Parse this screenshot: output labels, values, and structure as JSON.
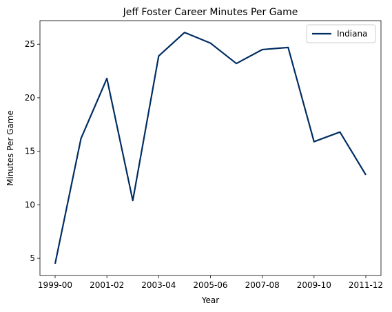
{
  "chart_data": {
    "type": "line",
    "title": "Jeff Foster  Career Minutes Per Game",
    "xlabel": "Year",
    "ylabel": "Minutes Per Game",
    "categories": [
      "1999-00",
      "2000-01",
      "2001-02",
      "2002-03",
      "2003-04",
      "2004-05",
      "2005-06",
      "2006-07",
      "2007-08",
      "2008-09",
      "2009-10",
      "2010-11",
      "2011-12"
    ],
    "x_tick_labels": [
      "1999-00",
      "2001-02",
      "2003-04",
      "2005-06",
      "2007-08",
      "2009-10",
      "2011-12"
    ],
    "y_ticks": [
      5,
      10,
      15,
      20,
      25
    ],
    "ylim": [
      3.4,
      27.2
    ],
    "grid": false,
    "legend_position": "top-right",
    "series": [
      {
        "name": "Indiana",
        "color": "#002D62",
        "values": [
          4.5,
          16.2,
          21.8,
          10.4,
          23.9,
          26.1,
          25.1,
          23.2,
          24.5,
          24.7,
          15.9,
          16.8,
          12.8
        ]
      }
    ]
  }
}
